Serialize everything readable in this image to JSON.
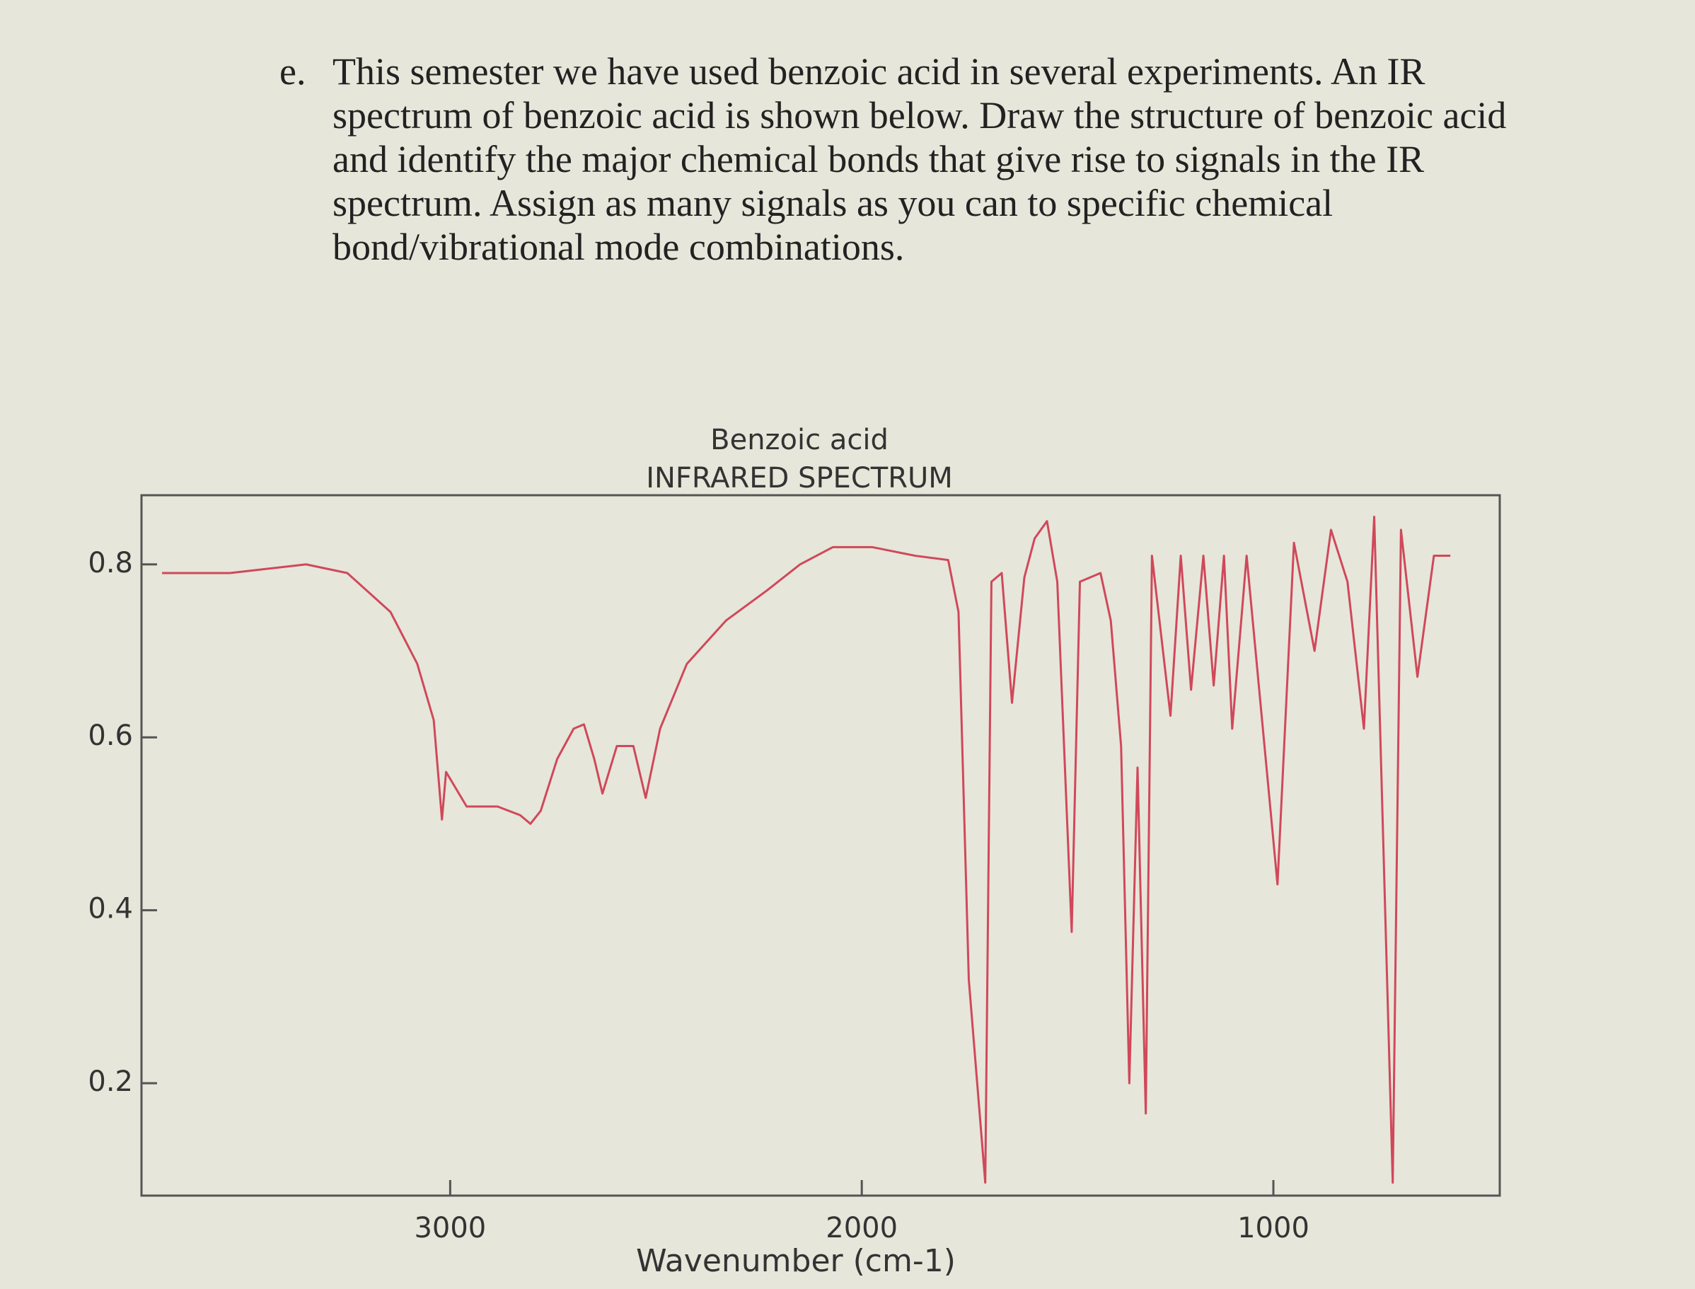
{
  "question": {
    "label": "e.",
    "text": "This semester we have used benzoic acid in several experiments.  An IR spectrum of benzoic acid is shown below.  Draw the structure of benzoic acid and identify the major chemical bonds that give rise to signals in the IR spectrum.  Assign as many signals as you can to specific chemical bond/vibrational mode combinations."
  },
  "chart_data": {
    "type": "line",
    "title": "Benzoic acid",
    "subtitle": "INFRARED SPECTRUM",
    "x_label": "Wavenumber (cm-1)",
    "series": [
      {
        "name": "Benzoic acid",
        "color": "#d0485a",
        "x": [
          3700,
          3535,
          3350,
          3250,
          3145,
          3080,
          3040,
          3020,
          3010,
          2960,
          2885,
          2830,
          2805,
          2780,
          2740,
          2700,
          2675,
          2650,
          2630,
          2595,
          2555,
          2525,
          2490,
          2425,
          2330,
          2230,
          2150,
          2070,
          1975,
          1870,
          1790,
          1765,
          1740,
          1700,
          1685,
          1660,
          1635,
          1605,
          1580,
          1550,
          1525,
          1490,
          1470,
          1420,
          1395,
          1370,
          1350,
          1330,
          1310,
          1295,
          1250,
          1225,
          1200,
          1170,
          1145,
          1120,
          1100,
          1065,
          990,
          950,
          900,
          860,
          820,
          780,
          755,
          710,
          690,
          650,
          610,
          570
        ],
        "values": [
          0.79,
          0.79,
          0.8,
          0.79,
          0.745,
          0.685,
          0.62,
          0.505,
          0.56,
          0.52,
          0.52,
          0.51,
          0.5,
          0.515,
          0.575,
          0.61,
          0.615,
          0.575,
          0.535,
          0.59,
          0.59,
          0.53,
          0.61,
          0.685,
          0.735,
          0.77,
          0.8,
          0.82,
          0.82,
          0.81,
          0.805,
          0.745,
          0.32,
          0.085,
          0.78,
          0.79,
          0.64,
          0.785,
          0.83,
          0.85,
          0.78,
          0.375,
          0.78,
          0.79,
          0.735,
          0.59,
          0.2,
          0.565,
          0.165,
          0.81,
          0.625,
          0.81,
          0.655,
          0.81,
          0.66,
          0.81,
          0.61,
          0.81,
          0.43,
          0.825,
          0.7,
          0.84,
          0.78,
          0.61,
          0.855,
          0.085,
          0.84,
          0.67,
          0.81,
          0.81
        ]
      }
    ],
    "xlim": [
      3750,
      450
    ],
    "ylim": [
      0.07,
      0.88
    ],
    "xticks": [
      3000,
      2000,
      1000
    ],
    "yticks": [
      0.2,
      0.4,
      0.6,
      0.8
    ]
  }
}
